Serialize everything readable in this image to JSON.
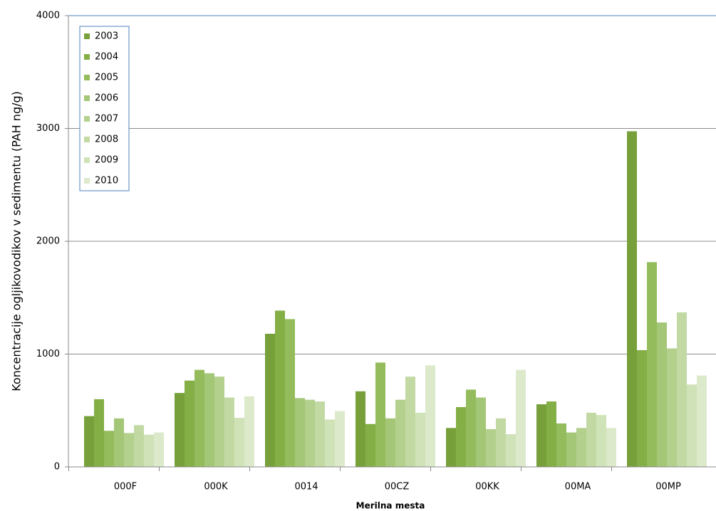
{
  "chart_data": {
    "type": "bar",
    "y_label": "Koncentracije ogljikovodikov v sedimentu (PAH ng/g)",
    "x_label": "Merilna mesta",
    "categories": [
      "000F",
      "000K",
      "0014",
      "00CZ",
      "00KK",
      "00MA",
      "00MP"
    ],
    "series": [
      {
        "name": "2003",
        "color": "#77a03a",
        "values": [
          450,
          655,
          1180,
          670,
          345,
          555,
          2975
        ]
      },
      {
        "name": "2004",
        "color": "#84ae46",
        "values": [
          600,
          765,
          1385,
          380,
          530,
          580,
          1035
        ]
      },
      {
        "name": "2005",
        "color": "#94bc5c",
        "values": [
          320,
          860,
          1310,
          925,
          685,
          385,
          1815
        ]
      },
      {
        "name": "2006",
        "color": "#a4c677",
        "values": [
          430,
          830,
          610,
          430,
          615,
          305,
          1280
        ]
      },
      {
        "name": "2007",
        "color": "#b3d08d",
        "values": [
          300,
          800,
          595,
          595,
          335,
          345,
          1050
        ]
      },
      {
        "name": "2008",
        "color": "#c2d9a4",
        "values": [
          370,
          615,
          580,
          800,
          430,
          480,
          1370
        ]
      },
      {
        "name": "2009",
        "color": "#d0e2b8",
        "values": [
          285,
          435,
          420,
          480,
          290,
          460,
          730
        ]
      },
      {
        "name": "2010",
        "color": "#dde9cb",
        "values": [
          305,
          625,
          495,
          900,
          860,
          345,
          810
        ]
      }
    ],
    "ylim": [
      0,
      4000
    ],
    "yticks": [
      0,
      1000,
      2000,
      3000,
      4000
    ],
    "grid": true
  }
}
